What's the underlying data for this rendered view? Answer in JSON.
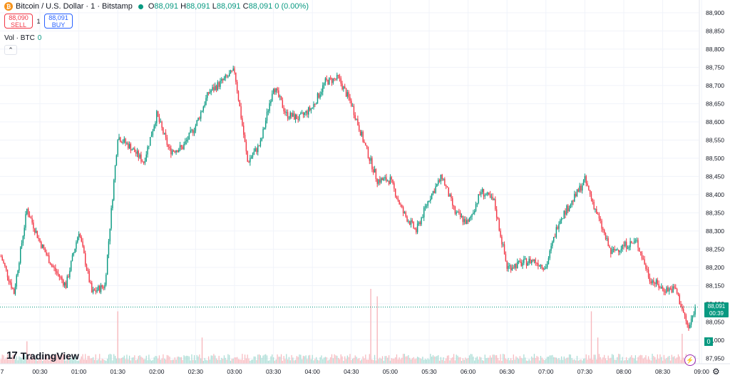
{
  "legend": {
    "symbol": "Bitcoin / U.S. Dollar · 1 · Bitstamp",
    "o_label": "O",
    "o_value": "88,091",
    "h_label": "H",
    "h_value": "88,091",
    "l_label": "L",
    "l_value": "88,091",
    "c_label": "C",
    "c_value": "88,091",
    "change": "0 (0.00%)"
  },
  "trade": {
    "sell_price": "88,090",
    "sell_label": "SELL",
    "spread": "1",
    "buy_price": "88,091",
    "buy_label": "BUY"
  },
  "volume": {
    "label": "Vol · BTC",
    "value": "0"
  },
  "price_tag": {
    "price": "88,091",
    "countdown": "00:39"
  },
  "volume_tag": "0",
  "logo": {
    "text": "TradingView"
  },
  "colors": {
    "up": "#089981",
    "down": "#f23645",
    "grid": "#f0f3fa",
    "text": "#131722"
  },
  "chart_data": {
    "type": "candlestick",
    "x_ticks": [
      "7",
      "00:30",
      "01:00",
      "01:30",
      "02:00",
      "02:30",
      "03:00",
      "03:30",
      "04:00",
      "04:30",
      "05:00",
      "05:30",
      "06:00",
      "06:30",
      "07:00",
      "07:30",
      "08:00",
      "08:30",
      "09:00"
    ],
    "y_ticks": [
      88900,
      88850,
      88800,
      88750,
      88700,
      88650,
      88600,
      88550,
      88500,
      88450,
      88400,
      88350,
      88300,
      88250,
      88200,
      88150,
      88100,
      88050,
      88000,
      87950
    ],
    "y_tick_labels": [
      "88,900",
      "88,850",
      "88,800",
      "88,750",
      "88,700",
      "88,650",
      "88,600",
      "88,550",
      "88,500",
      "88,450",
      "88,400",
      "88,350",
      "88,300",
      "88,250",
      "88,200",
      "88,150",
      "88,100",
      "88,050",
      "88,000",
      "87,950"
    ],
    "ylim": [
      87935,
      88935
    ],
    "last_price": 88091,
    "close_path": [
      [
        "00:00",
        88230
      ],
      [
        "00:10",
        88130
      ],
      [
        "00:20",
        88360
      ],
      [
        "00:30",
        88270
      ],
      [
        "00:40",
        88200
      ],
      [
        "00:50",
        88150
      ],
      [
        "01:00",
        88300
      ],
      [
        "01:10",
        88130
      ],
      [
        "01:20",
        88150
      ],
      [
        "01:30",
        88560
      ],
      [
        "01:40",
        88530
      ],
      [
        "01:50",
        88490
      ],
      [
        "02:00",
        88620
      ],
      [
        "02:10",
        88520
      ],
      [
        "02:20",
        88530
      ],
      [
        "02:30",
        88590
      ],
      [
        "02:40",
        88680
      ],
      [
        "03:00",
        88740
      ],
      [
        "03:10",
        88490
      ],
      [
        "03:20",
        88540
      ],
      [
        "03:30",
        88700
      ],
      [
        "03:40",
        88620
      ],
      [
        "03:50",
        88610
      ],
      [
        "04:00",
        88640
      ],
      [
        "04:10",
        88710
      ],
      [
        "04:20",
        88720
      ],
      [
        "04:30",
        88650
      ],
      [
        "04:40",
        88540
      ],
      [
        "04:50",
        88440
      ],
      [
        "05:00",
        88440
      ],
      [
        "05:10",
        88350
      ],
      [
        "05:20",
        88300
      ],
      [
        "05:30",
        88390
      ],
      [
        "05:40",
        88450
      ],
      [
        "05:50",
        88350
      ],
      [
        "06:00",
        88320
      ],
      [
        "06:10",
        88410
      ],
      [
        "06:20",
        88380
      ],
      [
        "06:30",
        88200
      ],
      [
        "06:40",
        88210
      ],
      [
        "06:50",
        88220
      ],
      [
        "07:00",
        88200
      ],
      [
        "07:10",
        88330
      ],
      [
        "07:20",
        88380
      ],
      [
        "07:30",
        88440
      ],
      [
        "07:40",
        88340
      ],
      [
        "07:50",
        88240
      ],
      [
        "08:00",
        88260
      ],
      [
        "08:10",
        88270
      ],
      [
        "08:20",
        88170
      ],
      [
        "08:30",
        88140
      ],
      [
        "08:40",
        88140
      ],
      [
        "08:50",
        88030
      ],
      [
        "08:55",
        88091
      ]
    ],
    "volume_spikes": [
      [
        "00:20",
        0.3
      ],
      [
        "01:30",
        0.7
      ],
      [
        "02:35",
        0.35
      ],
      [
        "04:45",
        1.0
      ],
      [
        "04:50",
        0.9
      ],
      [
        "07:35",
        0.7
      ],
      [
        "07:40",
        0.35
      ],
      [
        "08:45",
        0.4
      ]
    ]
  }
}
